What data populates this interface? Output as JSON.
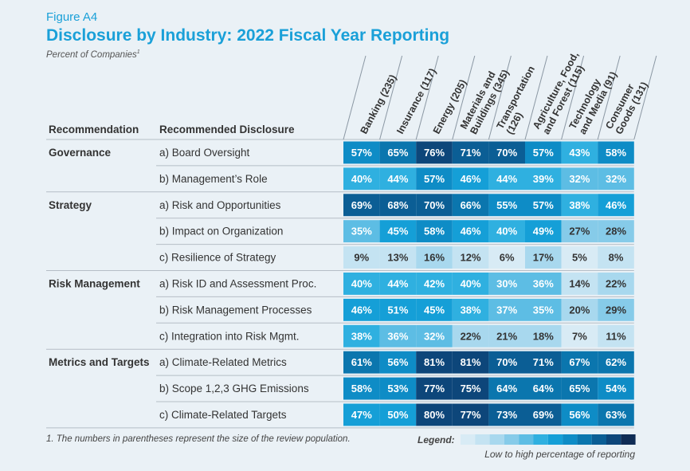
{
  "header": {
    "figure_label": "Figure A4",
    "title": "Disclosure by Industry: 2022 Fiscal Year Reporting",
    "subtitle": "Percent of Companies",
    "subtitle_sup": "1"
  },
  "footnote": "1. The numbers in parentheses represent the size of the review population.",
  "legend": {
    "label": "Legend:",
    "caption": "Low to high percentage of reporting",
    "swatches": [
      "#d8ebf5",
      "#c4e3f2",
      "#a8d8ee",
      "#86cbe9",
      "#5dbde4",
      "#2fb0e0",
      "#159fd7",
      "#0e8cc6",
      "#0b76ae",
      "#0b5e95",
      "#0d467a",
      "#0f2c55"
    ]
  },
  "chart_data": {
    "type": "table",
    "title": "Disclosure by Industry: 2022 Fiscal Year Reporting",
    "unit": "percent of companies",
    "row_header": "Recommendation",
    "disclosure_header": "Recommended Disclosure",
    "columns": [
      {
        "lines": [
          "Banking (235)"
        ]
      },
      {
        "lines": [
          "Insurance (117)"
        ]
      },
      {
        "lines": [
          "Energy (205)"
        ]
      },
      {
        "lines": [
          "Materials and",
          "Buildings (345)"
        ]
      },
      {
        "lines": [
          "Transportation",
          "(126)"
        ]
      },
      {
        "lines": [
          "Agriculture, Food,",
          "and Forest (115)"
        ]
      },
      {
        "lines": [
          "Technology",
          "and Media (91)"
        ]
      },
      {
        "lines": [
          "Consumer",
          "Goods (131)"
        ]
      }
    ],
    "rows": [
      {
        "group": "Governance",
        "disclosure": "a) Board Oversight",
        "values": [
          57,
          65,
          76,
          71,
          70,
          57,
          43,
          58
        ]
      },
      {
        "group": "",
        "disclosure": "b) Management’s Role",
        "values": [
          40,
          44,
          57,
          46,
          44,
          39,
          32,
          32
        ]
      },
      {
        "group": "Strategy",
        "disclosure": "a) Risk and Opportunities",
        "values": [
          69,
          68,
          70,
          66,
          55,
          57,
          38,
          46
        ]
      },
      {
        "group": "",
        "disclosure": "b) Impact on Organization",
        "values": [
          35,
          45,
          58,
          46,
          40,
          49,
          27,
          28
        ]
      },
      {
        "group": "",
        "disclosure": "c) Resilience of Strategy",
        "values": [
          9,
          13,
          16,
          12,
          6,
          17,
          5,
          8
        ]
      },
      {
        "group": "Risk Management",
        "disclosure": "a) Risk ID and Assessment Proc.",
        "values": [
          40,
          44,
          42,
          40,
          30,
          36,
          14,
          22
        ]
      },
      {
        "group": "",
        "disclosure": "b) Risk Management Processes",
        "values": [
          46,
          51,
          45,
          38,
          37,
          35,
          20,
          29
        ]
      },
      {
        "group": "",
        "disclosure": "c) Integration into Risk Mgmt.",
        "values": [
          38,
          36,
          32,
          22,
          21,
          18,
          7,
          11
        ]
      },
      {
        "group": "Metrics and Targets",
        "disclosure": "a) Climate-Related Metrics",
        "values": [
          61,
          56,
          81,
          81,
          70,
          71,
          67,
          62
        ]
      },
      {
        "group": "",
        "disclosure": "b) Scope 1,2,3 GHG Emissions",
        "values": [
          58,
          53,
          77,
          75,
          64,
          64,
          65,
          54
        ]
      },
      {
        "group": "",
        "disclosure": "c) Climate-Related Targets",
        "values": [
          47,
          50,
          80,
          77,
          73,
          69,
          56,
          63
        ]
      }
    ]
  }
}
